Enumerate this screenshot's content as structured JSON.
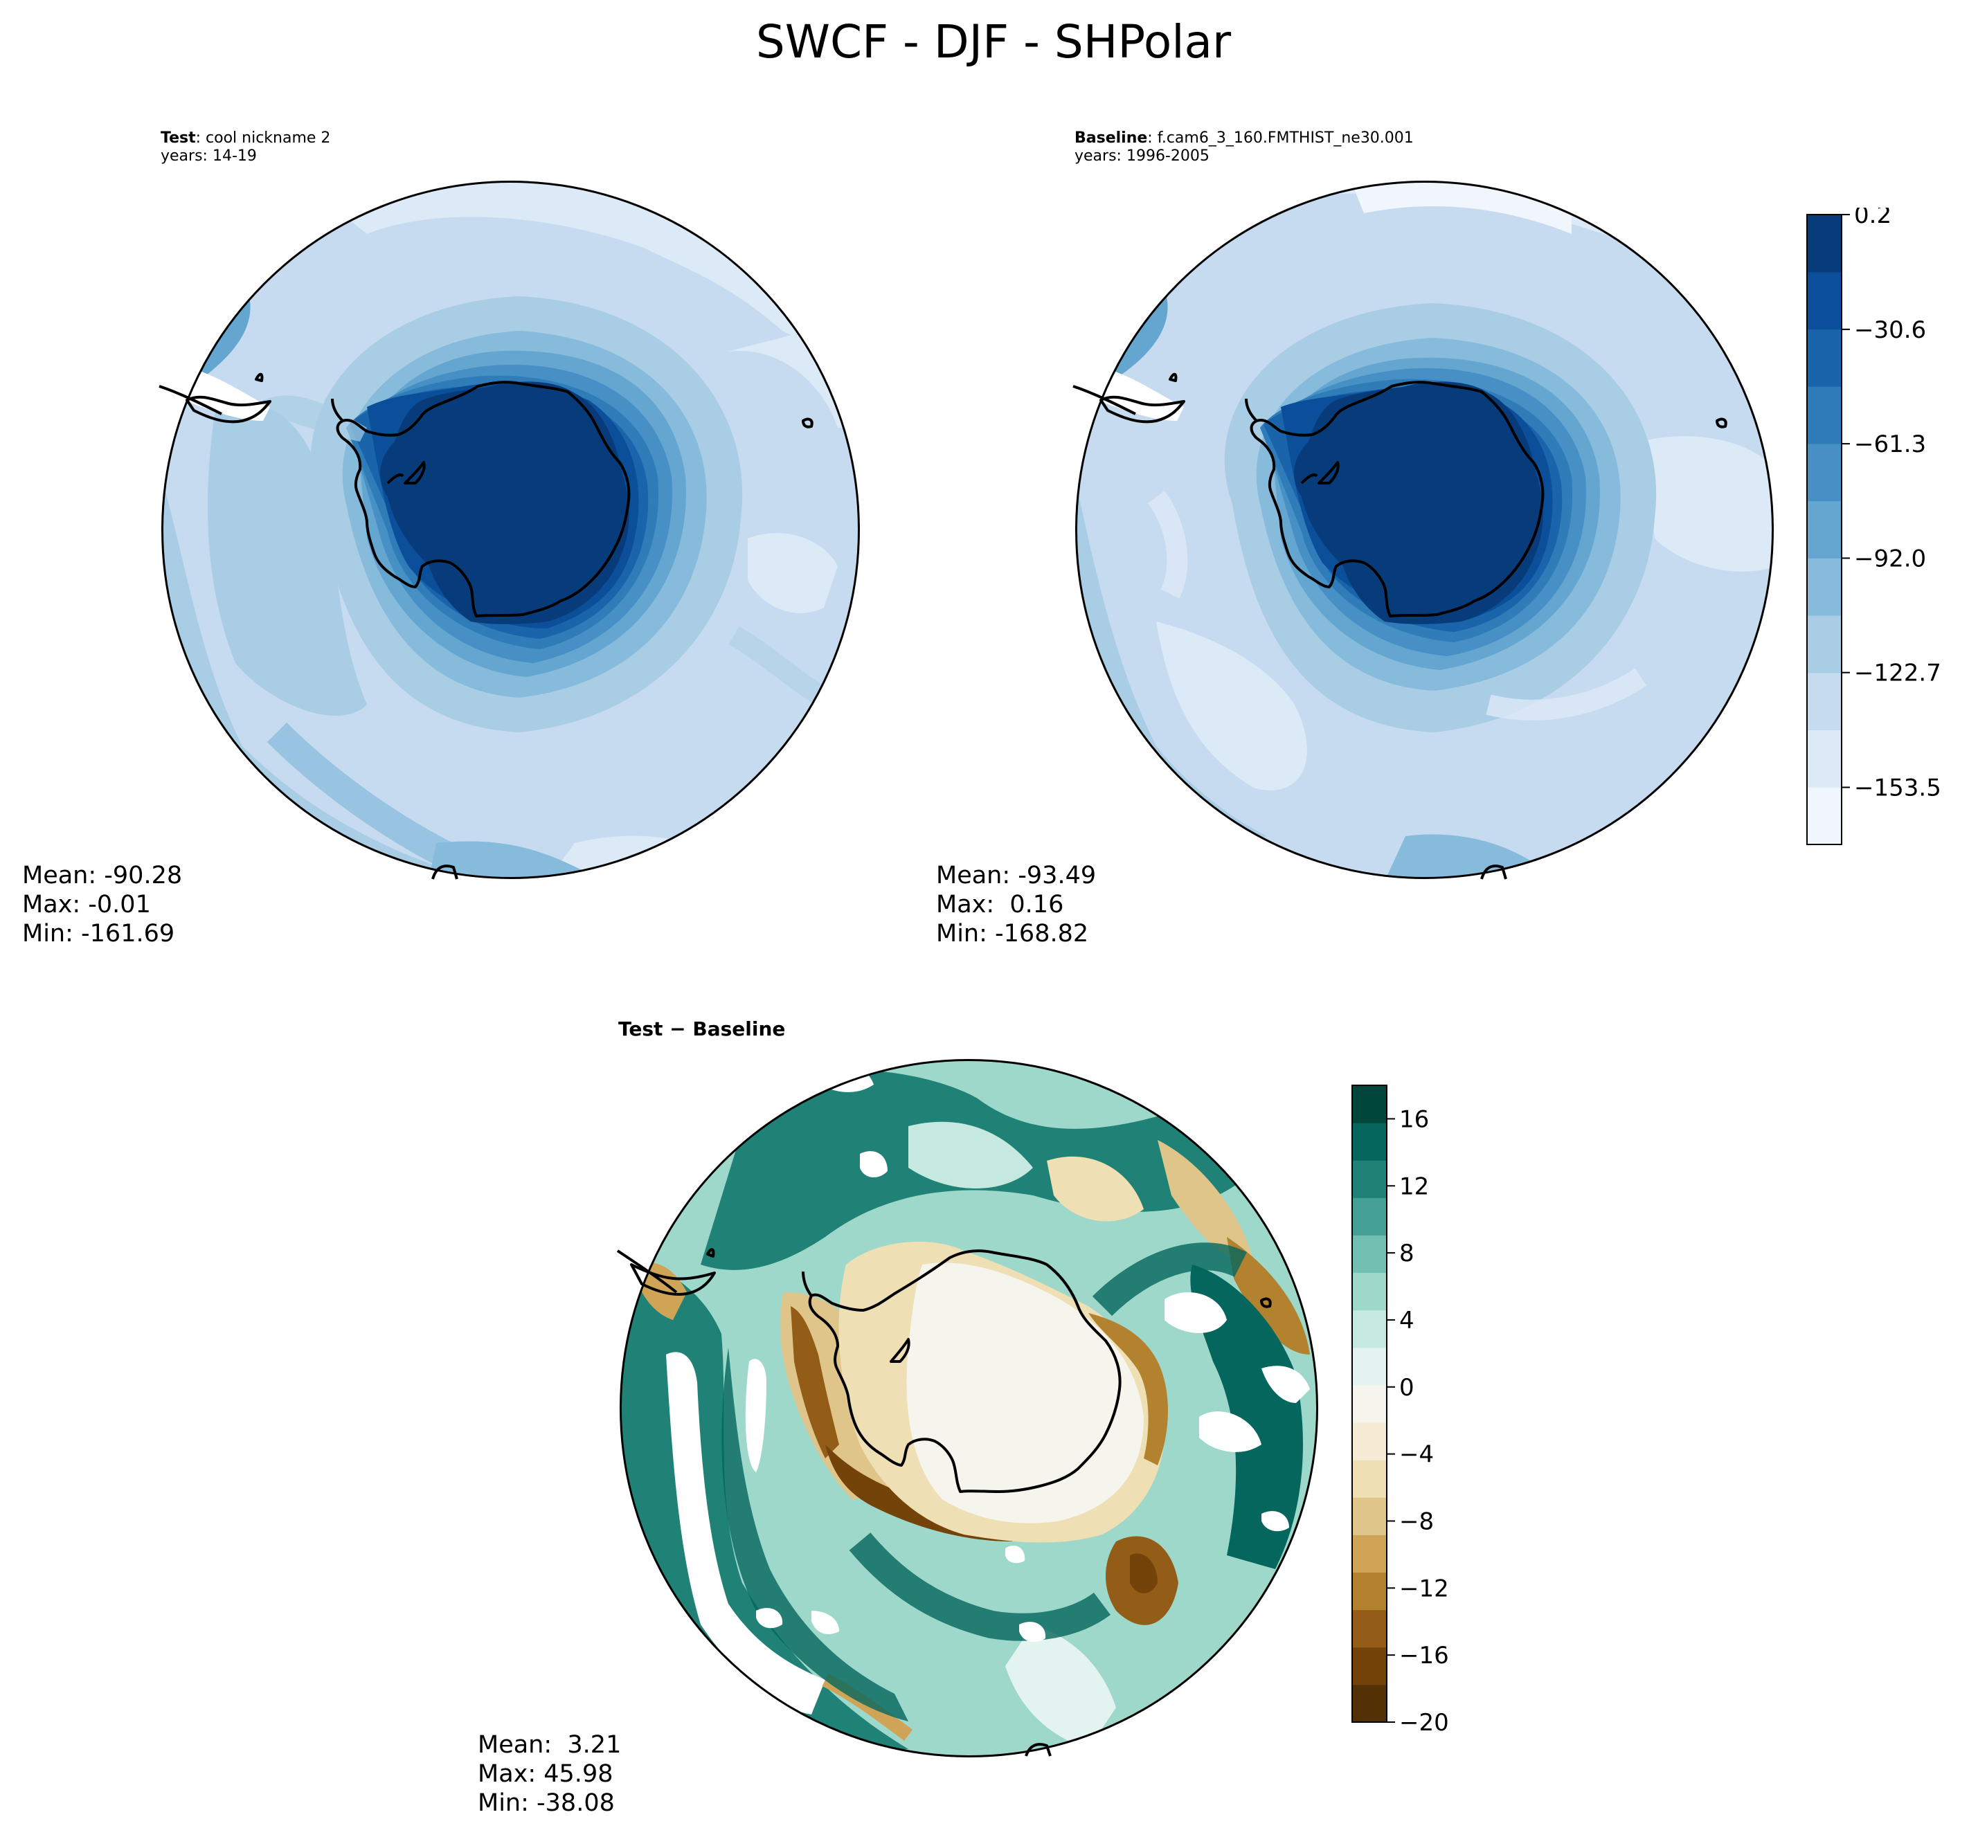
{
  "figure": {
    "title": "SWCF - DJF - SHPolar"
  },
  "panels": {
    "test": {
      "label_bold": "Test",
      "label_rest": ": cool nickname 2",
      "years": "years: 14-19",
      "stats": {
        "mean": "Mean: -90.28",
        "max": "Max: -0.01",
        "min": "Min: -161.69"
      }
    },
    "baseline": {
      "label_bold": "Baseline",
      "label_rest": ": f.cam6_3_160.FMTHIST_ne30.001",
      "years": "years: 1996-2005",
      "stats": {
        "mean": "Mean: -93.49",
        "max": "Max:  0.16",
        "min": "Min: -168.82"
      }
    },
    "diff": {
      "label": "Test − Baseline",
      "stats": {
        "mean": "Mean:  3.21",
        "max": "Max: 45.98",
        "min": "Min: -38.08"
      }
    }
  },
  "chart_data": [
    {
      "type": "heatmap",
      "panel": "test",
      "projection": "south-polar-stereographic",
      "colorbar": {
        "range": [
          -168.82,
          0.2
        ],
        "ticks": [
          "0.2",
          "−30.6",
          "−61.3",
          "−92.0",
          "−122.7",
          "−153.5"
        ],
        "colors": [
          "#f0f6fc",
          "#dce9f6",
          "#c6dbef",
          "#a8cde4",
          "#86bbdb",
          "#65a6d0",
          "#4690c5",
          "#2f7cb9",
          "#1a64ab",
          "#0b4e99",
          "#083b7a"
        ]
      }
    },
    {
      "type": "heatmap",
      "panel": "baseline",
      "projection": "south-polar-stereographic"
    },
    {
      "type": "heatmap",
      "panel": "diff",
      "projection": "south-polar-stereographic",
      "colorbar": {
        "range": [
          -20,
          18
        ],
        "ticks": [
          "16",
          "12",
          "8",
          "4",
          "0",
          "−4",
          "−8",
          "−12",
          "−16",
          "−20"
        ],
        "colors": [
          "#543005",
          "#744309",
          "#935d17",
          "#b3822e",
          "#cfa456",
          "#e0c58b",
          "#efdfb4",
          "#f6ecd6",
          "#f5f5ed",
          "#e3f3ef",
          "#c5e9e0",
          "#9ed8cb",
          "#72c0b1",
          "#45a195",
          "#208276",
          "#04665c",
          "#00463a"
        ]
      }
    }
  ]
}
